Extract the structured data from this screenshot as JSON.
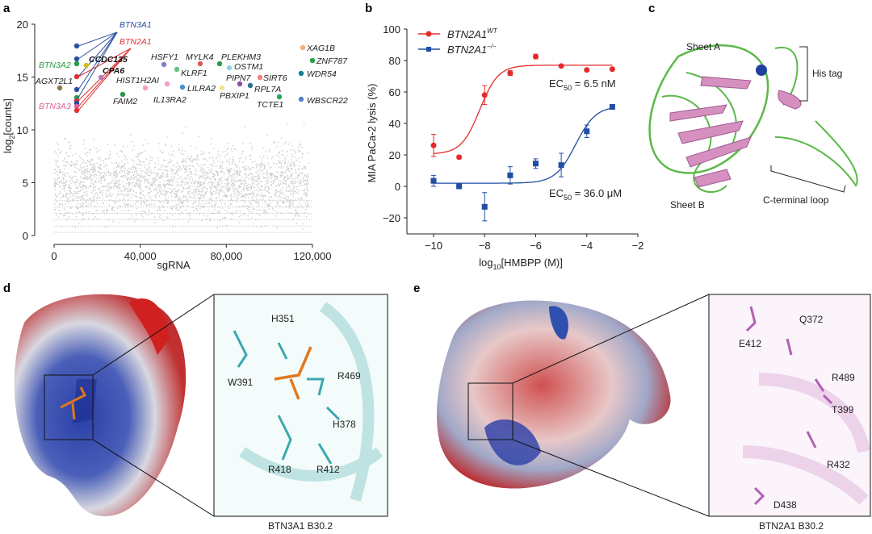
{
  "panels": {
    "a": "a",
    "b": "b",
    "c": "c",
    "d": "d",
    "e": "e"
  },
  "chart_data": [
    {
      "type": "scatter",
      "panel": "a",
      "xlabel": "sgRNA",
      "ylabel_main": "log",
      "ylabel_sub": "2",
      "ylabel_rest": "[counts]",
      "xlim": [
        0,
        120000
      ],
      "ylim": [
        0,
        20
      ],
      "xticks": [
        "0",
        "40,000",
        "80,000",
        "120,000"
      ],
      "yticks": [
        "0",
        "5",
        "10",
        "15",
        "20"
      ],
      "background_color": "#cccccc",
      "highlighted_genes": [
        {
          "name": "BTN3A1",
          "color": "#2b4fa0"
        },
        {
          "name": "BTN2A1",
          "color": "#e03030"
        },
        {
          "name": "BTN3A2",
          "color": "#2a9a4a"
        },
        {
          "name": "AGXT2L1",
          "color": "#222222"
        },
        {
          "name": "BTN3A3",
          "color": "#e0609a"
        },
        {
          "name": "CCDC135",
          "color": "#111111"
        },
        {
          "name": "CPA6",
          "color": "#111111"
        },
        {
          "name": "HIST1H2AI",
          "color": "#222222"
        },
        {
          "name": "FAIM2",
          "color": "#222222"
        },
        {
          "name": "HSFY1",
          "color": "#222222"
        },
        {
          "name": "KLRF1",
          "color": "#222222"
        },
        {
          "name": "IL13RA2",
          "color": "#222222"
        },
        {
          "name": "MYLK4",
          "color": "#222222"
        },
        {
          "name": "PLEKHM3",
          "color": "#222222"
        },
        {
          "name": "OSTM1",
          "color": "#222222"
        },
        {
          "name": "PIPN7",
          "color": "#222222"
        },
        {
          "name": "SIRT6",
          "color": "#222222"
        },
        {
          "name": "LILRA2",
          "color": "#222222"
        },
        {
          "name": "PBXIP1",
          "color": "#222222"
        },
        {
          "name": "RPL7A",
          "color": "#222222"
        },
        {
          "name": "TCTE1",
          "color": "#222222"
        },
        {
          "name": "XAG1B",
          "color": "#222222"
        },
        {
          "name": "ZNF787",
          "color": "#222222"
        },
        {
          "name": "WDR54",
          "color": "#222222"
        },
        {
          "name": "WBSCR22",
          "color": "#222222"
        }
      ]
    },
    {
      "type": "line",
      "panel": "b",
      "xlabel_main": "log",
      "xlabel_sub": "10",
      "xlabel_rest": "[HMBPP (M)]",
      "ylabel": "MIA PaCa-2 lysis (%)",
      "xlim": [
        -11,
        -2
      ],
      "ylim": [
        -30,
        100
      ],
      "xticks": [
        "−10",
        "−8",
        "−6",
        "−4",
        "−2"
      ],
      "yticks": [
        "−20",
        "0",
        "20",
        "40",
        "60",
        "80",
        "100"
      ],
      "legend": "top-left",
      "series": [
        {
          "name": "BTN2A1",
          "sup": "WT",
          "color": "#e52a2a",
          "marker": "circle",
          "x": [
            -10,
            -9,
            -8,
            -7,
            -6,
            -5,
            -4,
            -3
          ],
          "y": [
            26,
            18.5,
            58,
            72,
            82.5,
            76.5,
            74,
            74.5
          ],
          "err": [
            7,
            1,
            6,
            1.5,
            1.5,
            0.5,
            0.5,
            0.5
          ],
          "annotation_main": "EC",
          "annotation_sub": "50",
          "annotation_rest": " = 6.5 nM"
        },
        {
          "name": "BTN2A1",
          "sup": "−/−",
          "color": "#1f4ea3",
          "marker": "square",
          "x": [
            -10,
            -9,
            -8,
            -7,
            -6,
            -5,
            -4,
            -3
          ],
          "y": [
            3.5,
            0,
            -13,
            7,
            14.5,
            13.5,
            35,
            50.5
          ],
          "err": [
            3.5,
            0.5,
            9,
            5.5,
            3,
            7.5,
            4,
            1.5
          ],
          "annotation_main": "EC",
          "annotation_sub": "50",
          "annotation_rest": " = 36.0 μM"
        }
      ]
    }
  ],
  "panel_c": {
    "labels": [
      "Sheet A",
      "His tag",
      "Sheet B",
      "C-terminal loop"
    ]
  },
  "panel_d": {
    "residues": [
      "H351",
      "W391",
      "R469",
      "H378",
      "R418",
      "R412"
    ],
    "caption": "BTN3A1 B30.2"
  },
  "panel_e": {
    "residues": [
      "E412",
      "Q372",
      "R489",
      "T399",
      "R432",
      "D438"
    ],
    "caption": "BTN2A1 B30.2"
  }
}
